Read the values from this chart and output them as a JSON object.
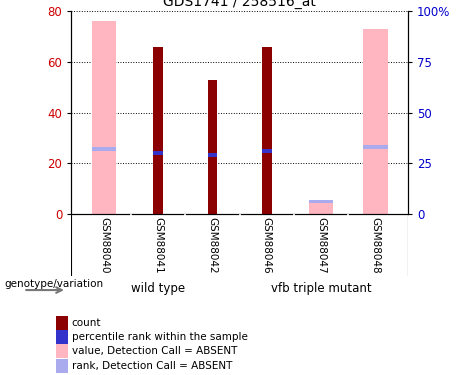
{
  "title": "GDS1741 / 258516_at",
  "samples": [
    "GSM88040",
    "GSM88041",
    "GSM88042",
    "GSM88046",
    "GSM88047",
    "GSM88048"
  ],
  "groups": [
    {
      "label": "wild type",
      "indices": [
        0,
        1,
        2
      ],
      "color": "#66DD66"
    },
    {
      "label": "vfb triple mutant",
      "indices": [
        3,
        4,
        5
      ],
      "color": "#66DD66"
    }
  ],
  "pink_bar_values": [
    76,
    0,
    0,
    0,
    5,
    73
  ],
  "dark_red_bar_values": [
    0,
    66,
    53,
    66,
    0,
    0
  ],
  "blue_rank_values": [
    32,
    30,
    29,
    31,
    6,
    33
  ],
  "pink_rank_values": [
    32,
    0,
    0,
    0,
    6,
    33
  ],
  "ylim_left": [
    0,
    80
  ],
  "ylim_right": [
    0,
    100
  ],
  "yticks_left": [
    0,
    20,
    40,
    60,
    80
  ],
  "yticks_right": [
    0,
    25,
    50,
    75,
    100
  ],
  "ytick_labels_right": [
    "0",
    "25",
    "50",
    "75",
    "100%"
  ],
  "pink_color": "#FFB6C1",
  "dark_red_color": "#8B0000",
  "blue_color": "#3333CC",
  "light_blue_color": "#AAAAEE",
  "label_bg_color": "#C8C8C8",
  "legend_items": [
    {
      "label": "count",
      "color": "#8B0000"
    },
    {
      "label": "percentile rank within the sample",
      "color": "#3333CC"
    },
    {
      "label": "value, Detection Call = ABSENT",
      "color": "#FFB6C1"
    },
    {
      "label": "rank, Detection Call = ABSENT",
      "color": "#AAAAEE"
    }
  ],
  "group_label": "genotype/variation",
  "background_color": "#ffffff",
  "tick_label_color_left": "#cc0000",
  "tick_label_color_right": "#0000cc"
}
